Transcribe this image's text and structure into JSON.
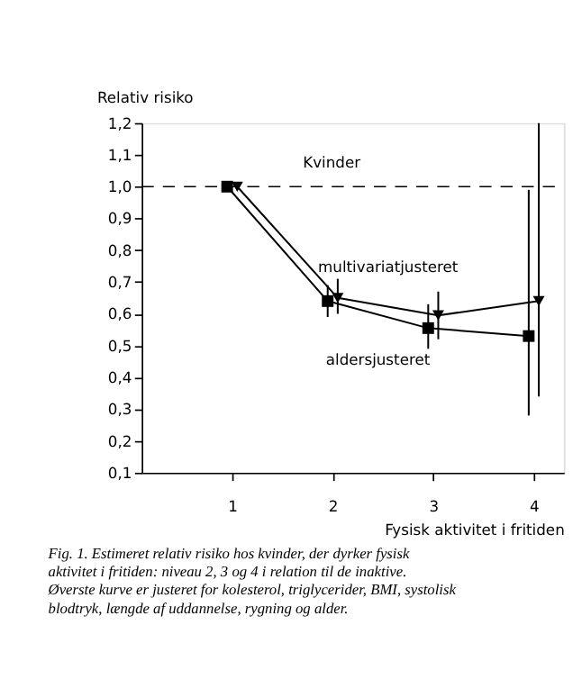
{
  "chart_data": {
    "type": "line",
    "xlabel": "Fysisk aktivitet i fritiden",
    "ylabel": "Relativ risiko",
    "series": [
      {
        "name": "aldersjusteret",
        "color": "#000000",
        "marker": "square",
        "x": [
          0.95,
          1.95,
          2.95,
          3.95
        ],
        "values": [
          1.0,
          0.64,
          0.555,
          0.53
        ],
        "errors": [
          null,
          [
            0.59,
            0.69
          ],
          [
            0.49,
            0.63
          ],
          [
            0.28,
            0.99
          ]
        ]
      },
      {
        "name": "multivariatjusteret",
        "color": "#000000",
        "marker": "triangle",
        "x": [
          1.05,
          2.05,
          3.05,
          4.05
        ],
        "values": [
          1.0,
          0.65,
          0.595,
          0.64
        ],
        "errors": [
          null,
          [
            0.6,
            0.71
          ],
          [
            0.52,
            0.67
          ],
          [
            0.34,
            1.2
          ]
        ]
      }
    ],
    "xlim": [
      0.1,
      4.3
    ],
    "xticks": [
      1,
      2,
      3,
      4
    ],
    "ylim": [
      0.1,
      1.2
    ],
    "yticks": [
      {
        "value": 0.1,
        "label": "0,1"
      },
      {
        "value": 0.2,
        "label": "0,2"
      },
      {
        "value": 0.3,
        "label": "0,3"
      },
      {
        "value": 0.4,
        "label": "0,4"
      },
      {
        "value": 0.5,
        "label": "0,5"
      },
      {
        "value": 0.6,
        "label": "0,6"
      },
      {
        "value": 0.7,
        "label": "0,7"
      },
      {
        "value": 0.8,
        "label": "0,8"
      },
      {
        "value": 0.9,
        "label": "0,9"
      },
      {
        "value": 1.0,
        "label": "1,0"
      },
      {
        "value": 1.1,
        "label": "1,1"
      },
      {
        "value": 1.2,
        "label": "1,2"
      }
    ],
    "ref_lines": [
      {
        "axis": "y",
        "value": 1.0,
        "label": "Kvinder",
        "line_style": "dashed",
        "color": "#000000"
      }
    ],
    "annotations": [
      "Fig. 1. Estimeret relativ risiko hos kvinder, der dyrker fysisk aktivitet i fritiden: niveau 2, 3 og 4 i relation til de inaktive. Øverste kurve er justeret for kolesterol, triglycerider, BMI, systolisk blodtryk, længde af uddannelse, rygning og alder."
    ],
    "grid": false
  }
}
